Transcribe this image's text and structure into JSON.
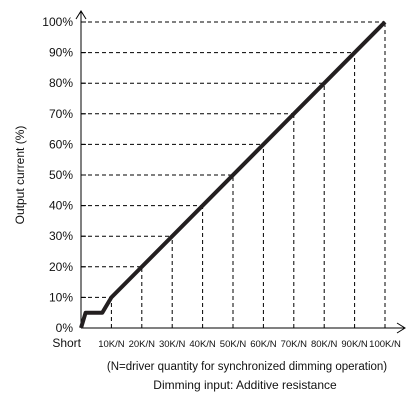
{
  "chart_data": {
    "type": "line",
    "ylabel": "Output current (%)",
    "xlabel": "Dimming input: Additive resistance",
    "note": "(N=driver quantity for synchronized dimming operation)",
    "categories": [
      "Short",
      "10K/N",
      "20K/N",
      "30K/N",
      "40K/N",
      "50K/N",
      "60K/N",
      "70K/N",
      "80K/N",
      "90K/N",
      "100K/N"
    ],
    "y_ticks": [
      "0%",
      "10%",
      "20%",
      "30%",
      "40%",
      "50%",
      "60%",
      "70%",
      "80%",
      "90%",
      "100%"
    ],
    "ylim": [
      0,
      100
    ],
    "xlim": [
      0,
      100
    ],
    "grid": "dashed lines from each tick to the curve",
    "series": [
      {
        "x": [
          0,
          1.5,
          3,
          7,
          10,
          100
        ],
        "y": [
          0,
          5,
          5,
          5,
          10,
          100
        ]
      }
    ]
  }
}
